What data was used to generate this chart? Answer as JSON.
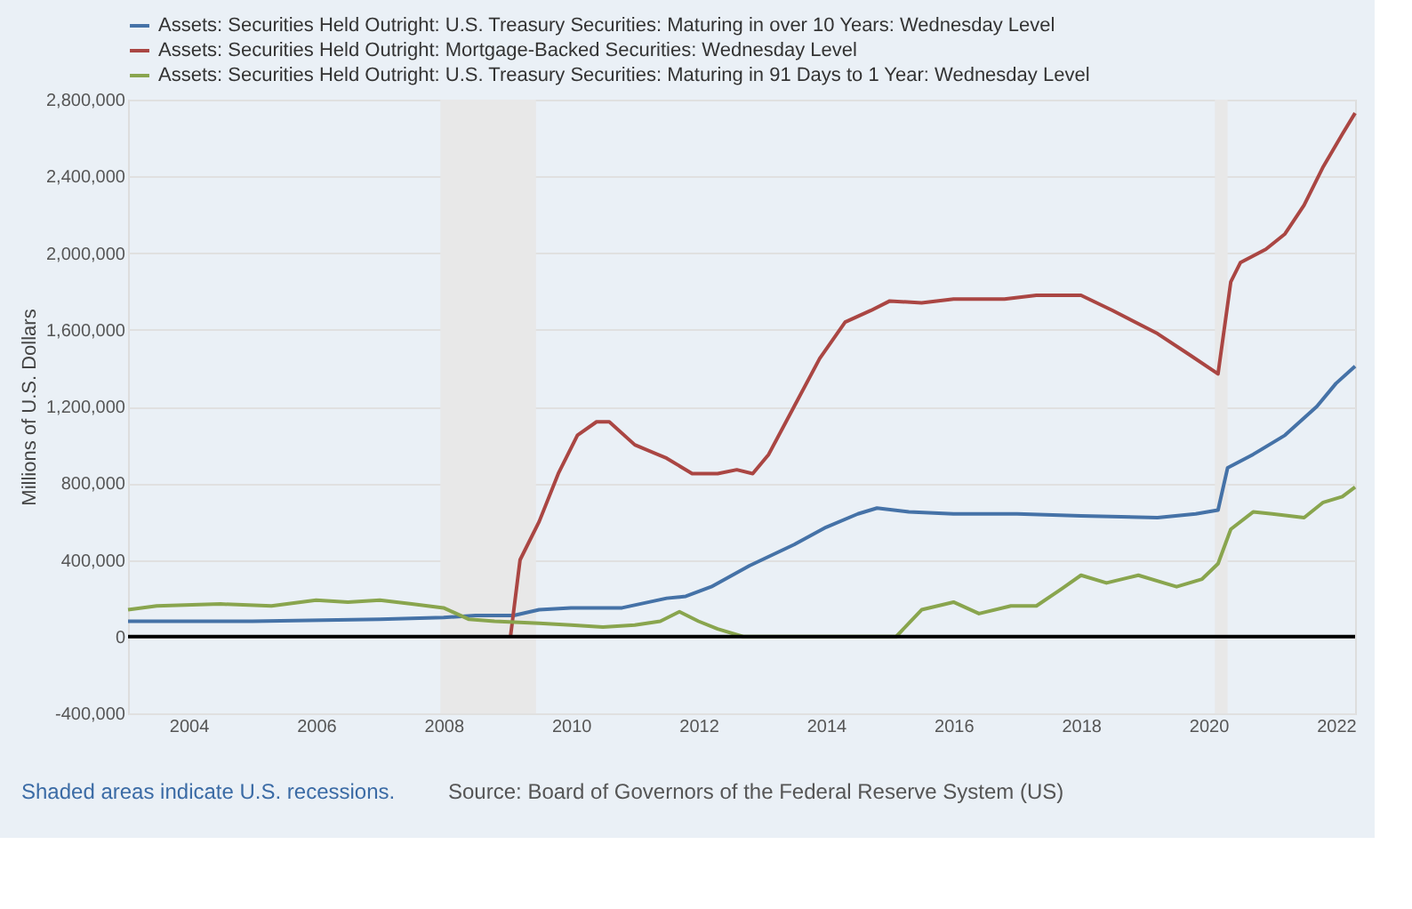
{
  "chart_data": {
    "type": "line",
    "ylabel": "Millions of U.S. Dollars",
    "legend": "top left",
    "grid": "y",
    "line_style": "solid",
    "marker": "none",
    "xlim": [
      2003.05,
      2022.3
    ],
    "xticks": [
      2004,
      2006,
      2008,
      2010,
      2012,
      2014,
      2016,
      2018,
      2020,
      2022
    ],
    "ylim": [
      -400000,
      2800000
    ],
    "yticks": [
      {
        "value": -400000,
        "label": "-400,000"
      },
      0,
      {
        "value": 400000,
        "label": "400,000"
      },
      {
        "value": 800000,
        "label": "800,000"
      },
      {
        "value": 1200000,
        "label": "1,200,000"
      },
      {
        "value": 1600000,
        "label": "1,600,000"
      },
      {
        "value": 2000000,
        "label": "2,000,000"
      },
      {
        "value": 2400000,
        "label": "2,400,000"
      },
      {
        "value": 2800000,
        "label": "2,800,000"
      }
    ],
    "bands": [
      {
        "axis": "x",
        "from": 2007.95,
        "to": 2009.45,
        "color": "#e8e8e8"
      },
      {
        "axis": "x",
        "from": 2020.1,
        "to": 2020.3,
        "color": "#e8e8e8"
      }
    ],
    "ref_lines": [
      {
        "axis": "y",
        "value": 0,
        "color": "#000000"
      }
    ],
    "annotations": [
      "Shaded areas indicate U.S. recessions.",
      "Source: Board of Governors of the Federal Reserve System (US)"
    ],
    "series": [
      {
        "name": "Assets: Securities Held Outright: U.S. Treasury Securities: Maturing in over 10 Years: Wednesday Level",
        "color": "#4572a7",
        "x": [
          2003.05,
          2005,
          2007,
          2008,
          2008.5,
          2009.1,
          2009.5,
          2010,
          2010.8,
          2011.5,
          2011.8,
          2012.2,
          2012.8,
          2013.5,
          2014.0,
          2014.5,
          2014.8,
          2015.3,
          2016,
          2017,
          2018,
          2019.2,
          2019.8,
          2020.15,
          2020.3,
          2020.7,
          2021.2,
          2021.7,
          2022.0,
          2022.3
        ],
        "values": [
          80000,
          80000,
          90000,
          100000,
          110000,
          110000,
          140000,
          150000,
          150000,
          200000,
          210000,
          260000,
          370000,
          480000,
          570000,
          640000,
          670000,
          650000,
          640000,
          640000,
          630000,
          620000,
          640000,
          660000,
          880000,
          950000,
          1050000,
          1200000,
          1320000,
          1410000
        ]
      },
      {
        "name": "Assets: Securities Held Outright: Mortgage-Backed Securities: Wednesday Level",
        "color": "#aa4643",
        "x": [
          2009.05,
          2009.2,
          2009.5,
          2009.8,
          2010.1,
          2010.4,
          2010.6,
          2011.0,
          2011.5,
          2011.9,
          2012.3,
          2012.6,
          2012.85,
          2013.1,
          2013.5,
          2013.9,
          2014.3,
          2014.7,
          2015.0,
          2015.5,
          2016.0,
          2016.8,
          2017.3,
          2018.0,
          2018.5,
          2019.2,
          2019.7,
          2020.15,
          2020.35,
          2020.5,
          2020.9,
          2021.2,
          2021.5,
          2021.8,
          2022.1,
          2022.3
        ],
        "values": [
          0,
          400000,
          600000,
          850000,
          1050000,
          1120000,
          1120000,
          1000000,
          930000,
          850000,
          850000,
          870000,
          850000,
          950000,
          1200000,
          1450000,
          1640000,
          1700000,
          1750000,
          1740000,
          1760000,
          1760000,
          1780000,
          1780000,
          1700000,
          1580000,
          1470000,
          1370000,
          1850000,
          1950000,
          2020000,
          2100000,
          2250000,
          2450000,
          2620000,
          2730000
        ]
      },
      {
        "name": "Assets: Securities Held Outright: U.S. Treasury Securities: Maturing in 91 Days to 1 Year: Wednesday Level",
        "color": "#89a54e",
        "x": [
          2003.05,
          2003.5,
          2004.5,
          2005.3,
          2006,
          2006.5,
          2007,
          2007.5,
          2008,
          2008.4,
          2008.8,
          2009.5,
          2010,
          2010.5,
          2011.0,
          2011.4,
          2011.7,
          2012.0,
          2012.3,
          2012.7,
          2015.1,
          2015.5,
          2016.0,
          2016.4,
          2016.9,
          2017.3,
          2017.7,
          2018.0,
          2018.4,
          2018.9,
          2019.3,
          2019.5,
          2019.9,
          2020.15,
          2020.35,
          2020.7,
          2021.0,
          2021.5,
          2021.8,
          2022.1,
          2022.3
        ],
        "values": [
          140000,
          160000,
          170000,
          160000,
          190000,
          180000,
          190000,
          170000,
          150000,
          90000,
          80000,
          70000,
          60000,
          50000,
          60000,
          80000,
          130000,
          80000,
          40000,
          0,
          0,
          140000,
          180000,
          120000,
          160000,
          160000,
          250000,
          320000,
          280000,
          320000,
          280000,
          260000,
          300000,
          380000,
          560000,
          650000,
          640000,
          620000,
          700000,
          730000,
          780000
        ]
      }
    ]
  }
}
